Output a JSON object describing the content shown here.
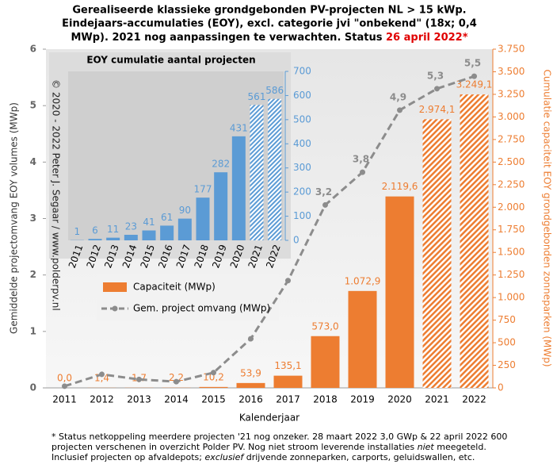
{
  "chart_data": [
    {
      "type": "combo",
      "title": [
        "Gerealiseerde klassieke grondgebonden PV-projecten NL > 15 kWp.",
        "Eindejaars-accumulaties (EOY), excl. categorie jvi \"onbekend\" (18x; 0,4",
        "MWp). 2021 nog aanpassingen te verwachten. Status"
      ],
      "title_highlight": "26 april 2022*",
      "x_label": "Kalenderjaar",
      "y_label": "Gemiddelde projectomvang EOY volumes (MWp)",
      "y2_label": "Cumulatie capaciteit EOY grondgebonden zonneparken (MWp)",
      "categories": [
        "2011",
        "2012",
        "2013",
        "2014",
        "2015",
        "2016",
        "2017",
        "2018",
        "2019",
        "2020",
        "2021",
        "2022"
      ],
      "ylim": [
        0,
        6
      ],
      "yticks": [
        0,
        1,
        2,
        3,
        4,
        5,
        6
      ],
      "y2lim": [
        0,
        3750
      ],
      "y2ticks": [
        0,
        250,
        500,
        750,
        {
          "value": 1000,
          "label": "1.000"
        },
        {
          "value": 1250,
          "label": "1.250"
        },
        {
          "value": 1500,
          "label": "1.500"
        },
        {
          "value": 1750,
          "label": "1.750"
        },
        {
          "value": 2000,
          "label": "2.000"
        },
        {
          "value": 2250,
          "label": "2.250"
        },
        {
          "value": 2500,
          "label": "2.500"
        },
        {
          "value": 2750,
          "label": "2.750"
        },
        {
          "value": 3000,
          "label": "3.000"
        },
        {
          "value": 3250,
          "label": "3.250"
        },
        {
          "value": 3500,
          "label": "3.500"
        },
        {
          "value": 3750,
          "label": "3.750"
        }
      ],
      "legend": "upper left",
      "series": [
        {
          "name": "Capaciteit (MWp)",
          "type": "bar",
          "axis": "y2",
          "color": "#ed7d31",
          "values": [
            0,
            1.4,
            1.7,
            2.2,
            10.2,
            53.9,
            135.1,
            573.0,
            1072.9,
            2119.6,
            2974.1,
            3249.1
          ],
          "value_labels": [
            "0,0",
            "1,4",
            "1,7",
            "2,2",
            "10,2",
            "53,9",
            "135,1",
            "573,0",
            "1.072,9",
            "2.119,6",
            "2.974,1",
            "3.249,1"
          ],
          "hatched": [
            false,
            false,
            false,
            false,
            false,
            false,
            false,
            false,
            false,
            false,
            true,
            true
          ]
        },
        {
          "name": "Gem. project omvang (MWp)",
          "type": "line",
          "color": "#8c8c8c",
          "values": [
            0.03,
            0.24,
            0.15,
            0.11,
            0.27,
            0.87,
            1.9,
            3.24,
            3.82,
            4.92,
            5.3,
            5.52
          ],
          "value_labels": [
            null,
            null,
            null,
            null,
            null,
            null,
            null,
            "3,2",
            "3,8",
            "4,9",
            "5,3",
            "5,5"
          ]
        }
      ]
    },
    {
      "type": "bar",
      "title": "EOY cumulatie aantal projecten",
      "categories": [
        "2011",
        "2012",
        "2013",
        "2014",
        "2015",
        "2016",
        "2017",
        "2018",
        "2019",
        "2020",
        "2021",
        "2022"
      ],
      "values": [
        1,
        6,
        11,
        23,
        41,
        61,
        90,
        177,
        282,
        431,
        561,
        586
      ],
      "hatched": [
        false,
        false,
        false,
        false,
        false,
        false,
        false,
        false,
        false,
        false,
        true,
        true
      ],
      "color": "#5b9bd5",
      "ylim": [
        0,
        700
      ],
      "yticks": [
        0,
        100,
        200,
        300,
        400,
        500,
        600,
        700
      ]
    }
  ],
  "watermark": "© 2020 - 2022 Peter J. Segaar / www.polderpv.nl",
  "footnote": [
    [
      "* Status netkoppeling meerdere projecten '21 nog onzeker. 28 maart 2022 3,0 GWp & 22 april 2022 600"
    ],
    [
      "projecten verschenen in overzicht Polder PV. Nog niet stroom leverende installaties ",
      "niet",
      " meegeteld."
    ],
    [
      "Inclusief projecten op afvaldepots; ",
      "exclusief",
      " drijvende zonneparken, carports, geluidswallen, etc."
    ]
  ]
}
